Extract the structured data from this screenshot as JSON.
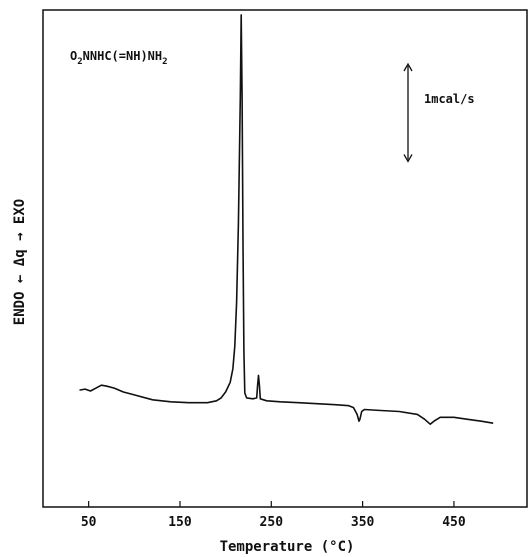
{
  "chart_data": {
    "type": "line",
    "title": "",
    "xlabel": "Temperature (°C)",
    "ylabel": "ENDO ← Δq → EXO",
    "xlim": [
      0,
      530
    ],
    "ylim": [
      -120,
      390
    ],
    "x_ticks": [
      50,
      150,
      250,
      350,
      450
    ],
    "y_ticks": [],
    "grid": false,
    "compound_label": {
      "prefix": "O",
      "subscript1": "2",
      "middle": "NNHC(=NH)NH",
      "subscript2": "2"
    },
    "scale_bar": {
      "label": "1mcal/s",
      "value": 100
    },
    "series": [
      {
        "points": [
          [
            40,
            0
          ],
          [
            46,
            1
          ],
          [
            52,
            -1
          ],
          [
            58,
            2
          ],
          [
            64,
            5
          ],
          [
            70,
            4
          ],
          [
            78,
            2
          ],
          [
            88,
            -2
          ],
          [
            100,
            -5
          ],
          [
            120,
            -10
          ],
          [
            140,
            -12
          ],
          [
            160,
            -13
          ],
          [
            180,
            -13
          ],
          [
            190,
            -11
          ],
          [
            195,
            -8
          ],
          [
            200,
            -2
          ],
          [
            205,
            8
          ],
          [
            208,
            22
          ],
          [
            210,
            45
          ],
          [
            212,
            90
          ],
          [
            214,
            170
          ],
          [
            216,
            300
          ],
          [
            217,
            385
          ],
          [
            218,
            300
          ],
          [
            219,
            150
          ],
          [
            220,
            40
          ],
          [
            221,
            -3
          ],
          [
            223,
            -8
          ],
          [
            230,
            -9
          ],
          [
            234,
            -8
          ],
          [
            235,
            5
          ],
          [
            236,
            15
          ],
          [
            237,
            5
          ],
          [
            238,
            -9
          ],
          [
            245,
            -11
          ],
          [
            260,
            -12
          ],
          [
            280,
            -13
          ],
          [
            300,
            -14
          ],
          [
            320,
            -15
          ],
          [
            335,
            -16
          ],
          [
            340,
            -18
          ],
          [
            344,
            -25
          ],
          [
            346,
            -32
          ],
          [
            347,
            -30
          ],
          [
            349,
            -22
          ],
          [
            352,
            -20
          ],
          [
            370,
            -21
          ],
          [
            390,
            -22
          ],
          [
            410,
            -25
          ],
          [
            418,
            -30
          ],
          [
            424,
            -35
          ],
          [
            428,
            -32
          ],
          [
            435,
            -28
          ],
          [
            450,
            -28
          ],
          [
            465,
            -30
          ],
          [
            480,
            -32
          ],
          [
            493,
            -34
          ]
        ]
      }
    ]
  }
}
